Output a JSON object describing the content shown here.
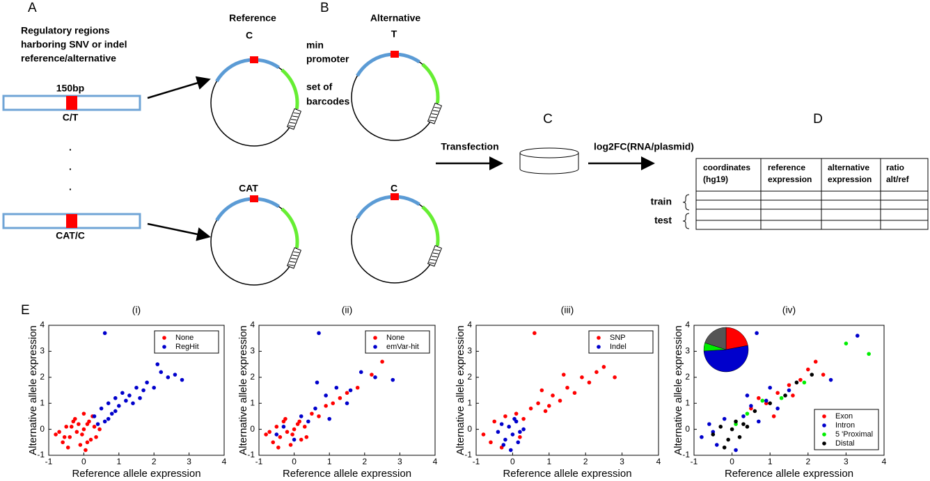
{
  "labels": {
    "a": "A",
    "b": "B",
    "c": "C",
    "d": "D",
    "e": "E"
  },
  "diagram": {
    "regions": [
      "Regulatory regions",
      "harboring SNV or indel",
      "reference/alternative"
    ],
    "length": "150bp",
    "allele1": "C/T",
    "allele2": "CAT/C",
    "dots": [
      ".",
      ".",
      "."
    ],
    "reference": "Reference",
    "alternative": "Alternative",
    "ref1": "C",
    "alt1": "T",
    "ref2": "CAT",
    "alt2": "C",
    "promoter": [
      "min",
      "promoter"
    ],
    "barcodes": [
      "set of",
      "barcodes"
    ],
    "transfection": "Transfection",
    "readout": "log2FC(RNA/plasmid)"
  },
  "table": {
    "headers": [
      [
        "coordinates",
        "(hg19)"
      ],
      [
        "reference",
        "expression"
      ],
      [
        "alternative",
        "expression"
      ],
      [
        "ratio",
        "alt/ref"
      ]
    ],
    "rows": [
      "train",
      "test"
    ]
  },
  "chart_data": [
    {
      "type": "scatter",
      "title": "(i)",
      "xlabel": "Reference allele expression",
      "ylabel": "Alternative allele expression",
      "xlim": [
        -1,
        4
      ],
      "ylim": [
        -1,
        4
      ],
      "xticks": [
        -1,
        0,
        1,
        2,
        3,
        4
      ],
      "yticks": [
        -1,
        0,
        1,
        2,
        3,
        4
      ],
      "legend": "upper right",
      "series": [
        {
          "name": "None",
          "color": "#ff0000",
          "x": [
            -0.8,
            -0.6,
            -0.5,
            -0.4,
            -0.3,
            -0.2,
            -0.1,
            0,
            0.1,
            0.2,
            0.3,
            -0.7,
            -0.45,
            -0.25,
            -0.05,
            0.15,
            0.35,
            -0.35,
            0.05,
            0.25,
            -0.15,
            0.45,
            -0.55,
            0.0,
            0.1
          ],
          "values": [
            -0.2,
            -0.5,
            0.1,
            -0.3,
            0.3,
            -0.1,
            -0.6,
            0.0,
            0.2,
            -0.4,
            0.1,
            -0.1,
            -0.7,
            0.4,
            -0.2,
            0.3,
            -0.3,
            0.1,
            -0.8,
            0.5,
            0.2,
            0.0,
            -0.3,
            0.6,
            -0.5
          ]
        },
        {
          "name": "RegHit",
          "color": "#0000cc",
          "x": [
            0.3,
            0.5,
            0.6,
            0.7,
            0.8,
            0.9,
            1.0,
            1.1,
            1.2,
            1.3,
            1.5,
            1.6,
            1.8,
            2.0,
            2.2,
            2.4,
            2.6,
            2.8,
            0.4,
            0.6,
            0.9,
            1.4,
            1.7,
            0.7,
            2.1
          ],
          "values": [
            0.5,
            0.8,
            0.3,
            1.0,
            0.6,
            1.2,
            0.9,
            1.4,
            1.1,
            1.3,
            1.6,
            1.2,
            1.8,
            1.6,
            2.2,
            2.0,
            2.1,
            1.9,
            0.2,
            3.7,
            0.7,
            1.0,
            1.5,
            0.4,
            2.5
          ]
        }
      ]
    },
    {
      "type": "scatter",
      "title": "(ii)",
      "xlabel": "Reference allele expression",
      "ylabel": "Alternative allele expression",
      "xlim": [
        -1,
        4
      ],
      "ylim": [
        -1,
        4
      ],
      "xticks": [
        -1,
        0,
        1,
        2,
        3,
        4
      ],
      "yticks": [
        -1,
        0,
        1,
        2,
        3,
        4
      ],
      "legend": "upper right",
      "series": [
        {
          "name": "None",
          "color": "#ff0000",
          "x": [
            -0.8,
            -0.6,
            -0.5,
            -0.4,
            -0.3,
            -0.2,
            -0.1,
            0,
            0.1,
            0.2,
            0.3,
            -0.7,
            -0.45,
            -0.25,
            -0.05,
            0.15,
            0.35,
            0.5,
            0.7,
            0.9,
            1.1,
            1.3,
            1.5,
            1.8,
            2.2,
            2.5
          ],
          "values": [
            -0.2,
            -0.5,
            0.1,
            -0.3,
            0.3,
            -0.1,
            -0.6,
            0.0,
            0.2,
            -0.4,
            0.1,
            -0.1,
            -0.7,
            0.4,
            -0.2,
            0.3,
            -0.3,
            0.6,
            0.5,
            0.9,
            1.0,
            1.2,
            1.4,
            1.6,
            2.1,
            2.6
          ]
        },
        {
          "name": "emVar-hit",
          "color": "#0000cc",
          "x": [
            -0.3,
            0.0,
            0.2,
            0.4,
            0.6,
            0.7,
            0.9,
            1.0,
            1.2,
            1.5,
            1.9,
            2.3,
            2.8,
            0.65,
            -0.5,
            1.6
          ],
          "values": [
            0.1,
            -0.4,
            0.5,
            0.3,
            0.8,
            3.7,
            1.3,
            0.4,
            1.6,
            1.0,
            2.2,
            2.0,
            1.9,
            1.8,
            -0.2,
            1.5
          ]
        }
      ]
    },
    {
      "type": "scatter",
      "title": "(iii)",
      "xlabel": "Reference allele expression",
      "ylabel": "Alternative allele expression",
      "xlim": [
        -1,
        4
      ],
      "ylim": [
        -1,
        4
      ],
      "xticks": [
        -1,
        0,
        1,
        2,
        3,
        4
      ],
      "yticks": [
        -1,
        0,
        1,
        2,
        3,
        4
      ],
      "legend": "upper right",
      "series": [
        {
          "name": "SNP",
          "color": "#ff0000",
          "x": [
            -0.8,
            -0.6,
            -0.5,
            -0.3,
            0.1,
            0.3,
            0.5,
            0.7,
            0.9,
            1.1,
            1.3,
            1.5,
            1.7,
            1.9,
            2.1,
            2.3,
            2.5,
            2.8,
            0.6,
            1.0,
            1.4,
            0.2,
            -0.2,
            0.8
          ],
          "values": [
            -0.2,
            -0.5,
            0.3,
            -0.7,
            0.6,
            0.4,
            0.8,
            1.0,
            0.7,
            1.3,
            1.1,
            1.6,
            1.4,
            2.0,
            1.8,
            2.2,
            2.4,
            2.0,
            3.7,
            0.9,
            2.1,
            -0.3,
            0.5,
            1.5
          ]
        },
        {
          "name": "Indel",
          "color": "#0000cc",
          "x": [
            -0.4,
            -0.3,
            -0.2,
            -0.1,
            0,
            0.1,
            0.2,
            0.3,
            -0.25,
            0.05,
            0.15,
            -0.05
          ],
          "values": [
            -0.1,
            0.2,
            -0.4,
            0.1,
            -0.2,
            0.3,
            -0.1,
            0.0,
            -0.6,
            0.4,
            -0.5,
            -0.8
          ]
        }
      ]
    },
    {
      "type": "scatter",
      "title": "(iv)",
      "xlabel": "Reference allele expression",
      "ylabel": "Alternative allele expression",
      "xlim": [
        -1,
        4
      ],
      "ylim": [
        -1,
        4
      ],
      "xticks": [
        -1,
        0,
        1,
        2,
        3,
        4
      ],
      "yticks": [
        -1,
        0,
        1,
        2,
        3,
        4
      ],
      "legend": "lower right",
      "inset": {
        "type": "pie",
        "values": [
          22,
          52,
          6,
          20
        ]
      },
      "series": [
        {
          "name": "Exon",
          "color": "#ff0000",
          "x": [
            0.5,
            0.9,
            1.2,
            1.5,
            1.8,
            2.0,
            2.2,
            2.4,
            1.1,
            0.7,
            1.6
          ],
          "values": [
            0.8,
            1.0,
            1.4,
            1.7,
            1.9,
            2.3,
            2.6,
            2.1,
            0.5,
            1.2,
            1.3
          ]
        },
        {
          "name": "Intron",
          "color": "#0000cc",
          "x": [
            -0.8,
            -0.6,
            -0.4,
            -0.2,
            0.1,
            0.3,
            0.5,
            0.7,
            0.9,
            1.2,
            1.5,
            2.6,
            3.3,
            -0.5,
            0.4,
            1.0,
            0.65
          ],
          "values": [
            -0.3,
            0.2,
            -0.6,
            0.4,
            -0.8,
            0.5,
            0.9,
            0.3,
            1.1,
            0.8,
            1.5,
            1.9,
            3.6,
            -0.1,
            1.3,
            1.6,
            3.7
          ]
        },
        {
          "name": "5 'Proximal",
          "color": "#00ee00",
          "x": [
            0.4,
            0.8,
            1.3,
            1.9,
            3.0,
            3.6,
            0.1
          ],
          "values": [
            0.6,
            1.1,
            1.2,
            1.8,
            3.3,
            2.9,
            0.2
          ]
        },
        {
          "name": "Distal",
          "color": "#000000",
          "x": [
            -0.5,
            -0.3,
            -0.1,
            0,
            0.1,
            0.2,
            0.3,
            -0.2,
            0.6,
            1.0,
            1.4,
            1.7,
            2.1,
            0.4
          ],
          "values": [
            -0.2,
            0.1,
            -0.4,
            0.0,
            0.3,
            -0.3,
            0.2,
            -0.7,
            0.7,
            1.0,
            1.3,
            1.8,
            2.1,
            0.1
          ]
        }
      ]
    }
  ]
}
